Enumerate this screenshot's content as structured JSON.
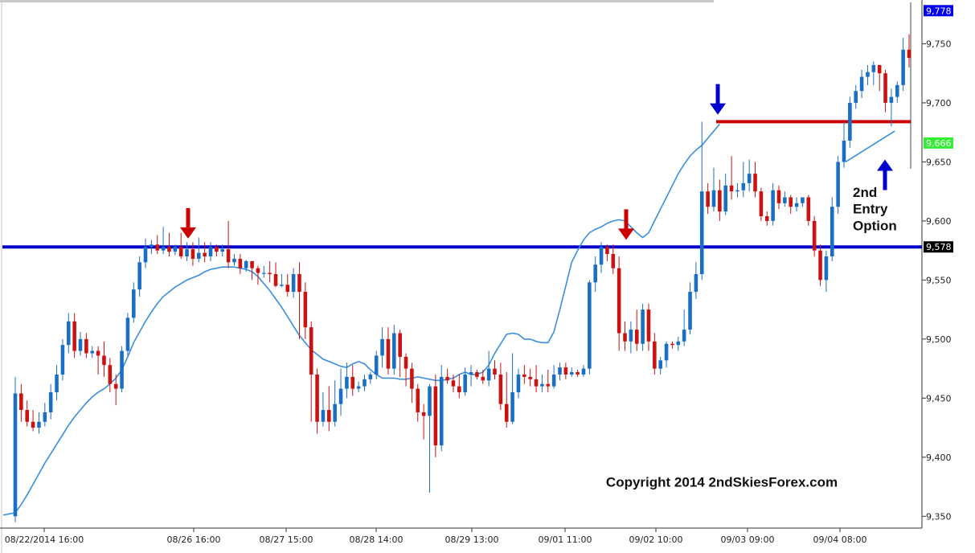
{
  "chart_data": {
    "type": "candlestick",
    "ylim": [
      9340,
      9785
    ],
    "y_ticks": [
      {
        "label": "9,750",
        "value": 9750
      },
      {
        "label": "9,700",
        "value": 9700
      },
      {
        "label": "9,650",
        "value": 9650
      },
      {
        "label": "9,600",
        "value": 9600
      },
      {
        "label": "9,550",
        "value": 9550
      },
      {
        "label": "9,500",
        "value": 9500
      },
      {
        "label": "9,450",
        "value": 9450
      },
      {
        "label": "9,400",
        "value": 9400
      },
      {
        "label": "9,350",
        "value": 9350
      }
    ],
    "x_labels": [
      "08/22/2014 16:00",
      "08/26 16:00",
      "08/27 15:00",
      "08/28 14:00",
      "08/29 13:00",
      "09/01 11:00",
      "09/02 10:00",
      "09/03 09:00",
      "09/04 08:00"
    ],
    "price_tags": [
      {
        "label": "9,778",
        "value": 9778,
        "bg": "#0000ee",
        "fg": "#ffffff"
      },
      {
        "label": "9,666",
        "value": 9666,
        "bg": "#33ee33",
        "fg": "#ffffff"
      },
      {
        "label": "9,578",
        "value": 9578,
        "bg": "#000000",
        "fg": "#ffffff"
      }
    ],
    "horizontal_lines": [
      {
        "value": 9578,
        "color": "#0000cc"
      },
      {
        "value": 9684,
        "color": "#cc0000"
      }
    ],
    "candles": [
      [
        9350,
        9454,
        9345,
        9468
      ],
      [
        9454,
        9440,
        9430,
        9462
      ],
      [
        9440,
        9430,
        9426,
        9448
      ],
      [
        9430,
        9425,
        9422,
        9440
      ],
      [
        9425,
        9430,
        9420,
        9438
      ],
      [
        9430,
        9438,
        9426,
        9446
      ],
      [
        9438,
        9455,
        9432,
        9462
      ],
      [
        9455,
        9470,
        9448,
        9478
      ],
      [
        9470,
        9495,
        9465,
        9500
      ],
      [
        9495,
        9515,
        9488,
        9522
      ],
      [
        9515,
        9490,
        9484,
        9522
      ],
      [
        9490,
        9500,
        9486,
        9506
      ],
      [
        9500,
        9488,
        9484,
        9505
      ],
      [
        9488,
        9490,
        9484,
        9494
      ],
      [
        9490,
        9486,
        9470,
        9494
      ],
      [
        9486,
        9478,
        9468,
        9498
      ],
      [
        9478,
        9462,
        9455,
        9484
      ],
      [
        9462,
        9458,
        9444,
        9470
      ],
      [
        9458,
        9490,
        9455,
        9494
      ],
      [
        9490,
        9518,
        9486,
        9522
      ],
      [
        9518,
        9542,
        9514,
        9548
      ],
      [
        9542,
        9565,
        9536,
        9570
      ],
      [
        9565,
        9578,
        9560,
        9585
      ],
      [
        9578,
        9580,
        9572,
        9584
      ],
      [
        9580,
        9575,
        9572,
        9588
      ],
      [
        9575,
        9578,
        9572,
        9595
      ],
      [
        9578,
        9574,
        9570,
        9590
      ],
      [
        9574,
        9578,
        9571,
        9580
      ],
      [
        9578,
        9570,
        9568,
        9590
      ],
      [
        9570,
        9576,
        9566,
        9582
      ],
      [
        9576,
        9568,
        9562,
        9582
      ],
      [
        9568,
        9573,
        9565,
        9586
      ],
      [
        9573,
        9570,
        9565,
        9582
      ],
      [
        9570,
        9578,
        9566,
        9582
      ],
      [
        9578,
        9574,
        9570,
        9580
      ],
      [
        9574,
        9576,
        9570,
        9580
      ],
      [
        9576,
        9565,
        9560,
        9600
      ],
      [
        9565,
        9568,
        9562,
        9572
      ],
      [
        9568,
        9560,
        9555,
        9572
      ],
      [
        9560,
        9566,
        9557,
        9567
      ],
      [
        9566,
        9560,
        9550,
        9566
      ],
      [
        9560,
        9556,
        9546,
        9562
      ],
      [
        9556,
        9556,
        9552,
        9562
      ],
      [
        9556,
        9555,
        9548,
        9566
      ],
      [
        9555,
        9545,
        9544,
        9565
      ],
      [
        9545,
        9546,
        9544,
        9555
      ],
      [
        9546,
        9540,
        9536,
        9555
      ],
      [
        9540,
        9555,
        9535,
        9560
      ],
      [
        9555,
        9540,
        9500,
        9565
      ],
      [
        9540,
        9510,
        9500,
        9548
      ],
      [
        9510,
        9470,
        9430,
        9515
      ],
      [
        9470,
        9430,
        9420,
        9475
      ],
      [
        9430,
        9440,
        9426,
        9455
      ],
      [
        9440,
        9430,
        9422,
        9460
      ],
      [
        9430,
        9445,
        9426,
        9465
      ],
      [
        9445,
        9458,
        9435,
        9475
      ],
      [
        9458,
        9468,
        9450,
        9480
      ],
      [
        9468,
        9458,
        9452,
        9478
      ],
      [
        9458,
        9460,
        9455,
        9464
      ],
      [
        9460,
        9466,
        9456,
        9470
      ],
      [
        9466,
        9470,
        9462,
        9472
      ],
      [
        9470,
        9486,
        9466,
        9490
      ],
      [
        9486,
        9500,
        9476,
        9510
      ],
      [
        9500,
        9475,
        9470,
        9510
      ],
      [
        9475,
        9505,
        9470,
        9512
      ],
      [
        9505,
        9485,
        9468,
        9508
      ],
      [
        9485,
        9475,
        9460,
        9488
      ],
      [
        9475,
        9458,
        9446,
        9480
      ],
      [
        9458,
        9438,
        9430,
        9462
      ],
      [
        9438,
        9435,
        9415,
        9445
      ],
      [
        9435,
        9460,
        9370,
        9462
      ],
      [
        9460,
        9410,
        9400,
        9470
      ],
      [
        9410,
        9468,
        9405,
        9478
      ],
      [
        9468,
        9465,
        9462,
        9475
      ],
      [
        9465,
        9460,
        9455,
        9470
      ],
      [
        9460,
        9455,
        9450,
        9470
      ],
      [
        9455,
        9470,
        9452,
        9476
      ],
      [
        9470,
        9472,
        9460,
        9478
      ],
      [
        9472,
        9468,
        9466,
        9474
      ],
      [
        9468,
        9465,
        9462,
        9474
      ],
      [
        9465,
        9475,
        9460,
        9490
      ],
      [
        9475,
        9470,
        9466,
        9482
      ],
      [
        9470,
        9445,
        9440,
        9480
      ],
      [
        9445,
        9430,
        9425,
        9472
      ],
      [
        9430,
        9455,
        9428,
        9488
      ],
      [
        9455,
        9470,
        9450,
        9475
      ],
      [
        9470,
        9468,
        9462,
        9478
      ],
      [
        9468,
        9466,
        9460,
        9475
      ],
      [
        9466,
        9460,
        9455,
        9478
      ],
      [
        9460,
        9462,
        9455,
        9470
      ],
      [
        9462,
        9460,
        9455,
        9474
      ],
      [
        9460,
        9470,
        9458,
        9478
      ],
      [
        9470,
        9476,
        9465,
        9480
      ],
      [
        9476,
        9470,
        9466,
        9480
      ],
      [
        9470,
        9472,
        9468,
        9476
      ],
      [
        9472,
        9470,
        9468,
        9474
      ],
      [
        9470,
        9475,
        9468,
        9478
      ],
      [
        9475,
        9548,
        9470,
        9550
      ],
      [
        9548,
        9563,
        9540,
        9570
      ],
      [
        9563,
        9578,
        9556,
        9582
      ],
      [
        9578,
        9572,
        9566,
        9580
      ],
      [
        9572,
        9560,
        9555,
        9580
      ],
      [
        9560,
        9505,
        9490,
        9570
      ],
      [
        9505,
        9498,
        9490,
        9515
      ],
      [
        9498,
        9508,
        9488,
        9515
      ],
      [
        9508,
        9496,
        9490,
        9525
      ],
      [
        9496,
        9525,
        9490,
        9530
      ],
      [
        9525,
        9498,
        9490,
        9530
      ],
      [
        9498,
        9475,
        9470,
        9505
      ],
      [
        9475,
        9482,
        9470,
        9485
      ],
      [
        9482,
        9496,
        9476,
        9498
      ],
      [
        9496,
        9495,
        9492,
        9498
      ],
      [
        9495,
        9498,
        9490,
        9502
      ],
      [
        9498,
        9508,
        9494,
        9525
      ],
      [
        9508,
        9540,
        9504,
        9548
      ],
      [
        9540,
        9555,
        9534,
        9565
      ],
      [
        9555,
        9625,
        9550,
        9684
      ],
      [
        9625,
        9612,
        9606,
        9632
      ],
      [
        9612,
        9626,
        9608,
        9645
      ],
      [
        9626,
        9608,
        9600,
        9635
      ],
      [
        9608,
        9630,
        9605,
        9640
      ],
      [
        9630,
        9625,
        9618,
        9655
      ],
      [
        9625,
        9626,
        9620,
        9632
      ],
      [
        9626,
        9632,
        9620,
        9650
      ],
      [
        9632,
        9640,
        9625,
        9652
      ],
      [
        9640,
        9625,
        9620,
        9650
      ],
      [
        9625,
        9604,
        9600,
        9628
      ],
      [
        9604,
        9600,
        9596,
        9608
      ],
      [
        9600,
        9626,
        9596,
        9632
      ],
      [
        9626,
        9615,
        9610,
        9630
      ],
      [
        9615,
        9620,
        9612,
        9625
      ],
      [
        9620,
        9612,
        9606,
        9622
      ],
      [
        9612,
        9615,
        9608,
        9620
      ],
      [
        9615,
        9620,
        9612,
        9620
      ],
      [
        9620,
        9600,
        9596,
        9622
      ],
      [
        9600,
        9575,
        9570,
        9604
      ],
      [
        9575,
        9550,
        9545,
        9580
      ],
      [
        9550,
        9570,
        9540,
        9575
      ],
      [
        9570,
        9612,
        9566,
        9620
      ],
      [
        9612,
        9650,
        9606,
        9655
      ],
      [
        9650,
        9668,
        9645,
        9684
      ],
      [
        9668,
        9700,
        9662,
        9705
      ],
      [
        9700,
        9710,
        9695,
        9715
      ],
      [
        9710,
        9722,
        9704,
        9728
      ],
      [
        9722,
        9726,
        9715,
        9732
      ],
      [
        9726,
        9732,
        9715,
        9735
      ],
      [
        9732,
        9725,
        9710,
        9732
      ],
      [
        9725,
        9700,
        9692,
        9728
      ],
      [
        9700,
        9705,
        9680,
        9712
      ],
      [
        9705,
        9715,
        9700,
        9718
      ],
      [
        9715,
        9745,
        9710,
        9755
      ],
      [
        9745,
        9738,
        9730,
        9758
      ]
    ],
    "moving_average": {
      "values": [
        9353,
        9360,
        9368,
        9377,
        9386,
        9395,
        9403,
        9411,
        9419,
        9427,
        9434,
        9440,
        9446,
        9451,
        9455,
        9458,
        9462,
        9467,
        9474,
        9485,
        9497,
        9506,
        9515,
        9523,
        9530,
        9536,
        9540,
        9544,
        9547,
        9550,
        9552,
        9554,
        9557,
        9559,
        9560,
        9561,
        9561,
        9561,
        9560,
        9559,
        9557,
        9553,
        9547,
        9541,
        9534,
        9527,
        9519,
        9511,
        9503,
        9497,
        9491,
        9487,
        9483,
        9481,
        9479,
        9477,
        9476,
        9479,
        9481,
        9479,
        9474,
        9470,
        9467,
        9467,
        9467,
        9466,
        9466,
        9467,
        9468,
        9467,
        9466,
        9465,
        9465,
        9466,
        9467,
        9470,
        9472,
        9470,
        9470,
        9472,
        9478,
        9488,
        9496,
        9504,
        9505,
        9504,
        9500,
        9500,
        9498,
        9497,
        9497,
        9506,
        9525,
        9545,
        9565,
        9575,
        9584,
        9590,
        9593,
        9595,
        9598,
        9600,
        9601,
        9600,
        9595,
        9590,
        9586,
        9590,
        9600,
        9610,
        9620,
        9630,
        9640,
        9648,
        9655,
        9660,
        9664,
        9670,
        9676,
        9682
      ],
      "start": 0
    },
    "annotations": [
      {
        "text": "2nd",
        "value": 9625
      },
      {
        "text": "Entry",
        "value": 9611
      },
      {
        "text": "Option",
        "value": 9597
      },
      {
        "text": "Copyright 2014 2ndSkiesForex.com",
        "value": 9379
      }
    ],
    "arrows": [
      {
        "color": "#cc0000",
        "direction": "down",
        "value": 9585
      },
      {
        "color": "#cc0000",
        "direction": "down",
        "value": 9584
      },
      {
        "color": "#0000cc",
        "direction": "down",
        "value": 9690
      },
      {
        "color": "#0000cc",
        "direction": "up",
        "value": 9652
      }
    ]
  }
}
